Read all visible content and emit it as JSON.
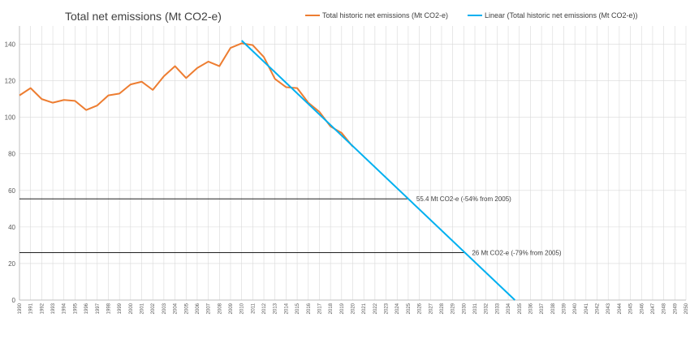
{
  "chart_data": {
    "type": "line",
    "title": "Total net emissions (Mt CO2-e)",
    "xlabel": "",
    "ylabel": "",
    "xlim": [
      1990,
      2050
    ],
    "ylim": [
      0,
      150
    ],
    "yticks": [
      0,
      20,
      40,
      60,
      80,
      100,
      120,
      140
    ],
    "grid": true,
    "legend": "top-right",
    "colors": {
      "historic": "#ed7d31",
      "linear": "#00b0f0",
      "reference": "#000000",
      "grid": "#d9d9d9"
    },
    "series": [
      {
        "name": "Total historic net emissions (Mt CO2-e)",
        "x": [
          1990,
          1991,
          1992,
          1993,
          1994,
          1995,
          1996,
          1997,
          1998,
          1999,
          2000,
          2001,
          2002,
          2003,
          2004,
          2005,
          2006,
          2007,
          2008,
          2009,
          2010,
          2011,
          2012,
          2013,
          2014,
          2015,
          2016,
          2017,
          2018,
          2019,
          2020
        ],
        "values": [
          112,
          116,
          110,
          108,
          109.5,
          109,
          104,
          106.5,
          112,
          113,
          118,
          119.5,
          115,
          122.5,
          128,
          121.5,
          127,
          130.5,
          128,
          138,
          140.5,
          139.5,
          133,
          121,
          116.5,
          116,
          108,
          103,
          95,
          91.5,
          84
        ]
      },
      {
        "name": "Linear (Total historic net emissions (Mt CO2-e))",
        "x": [
          2010,
          2034.6
        ],
        "values": [
          142,
          0
        ]
      }
    ],
    "reference_lines": [
      {
        "y": 55.4,
        "x_end": 2025,
        "label": "55.4 Mt CO2-e (-54% from 2005)"
      },
      {
        "y": 26,
        "x_end": 2030,
        "label": "26 Mt CO2-e (-79% from 2005)"
      }
    ]
  }
}
